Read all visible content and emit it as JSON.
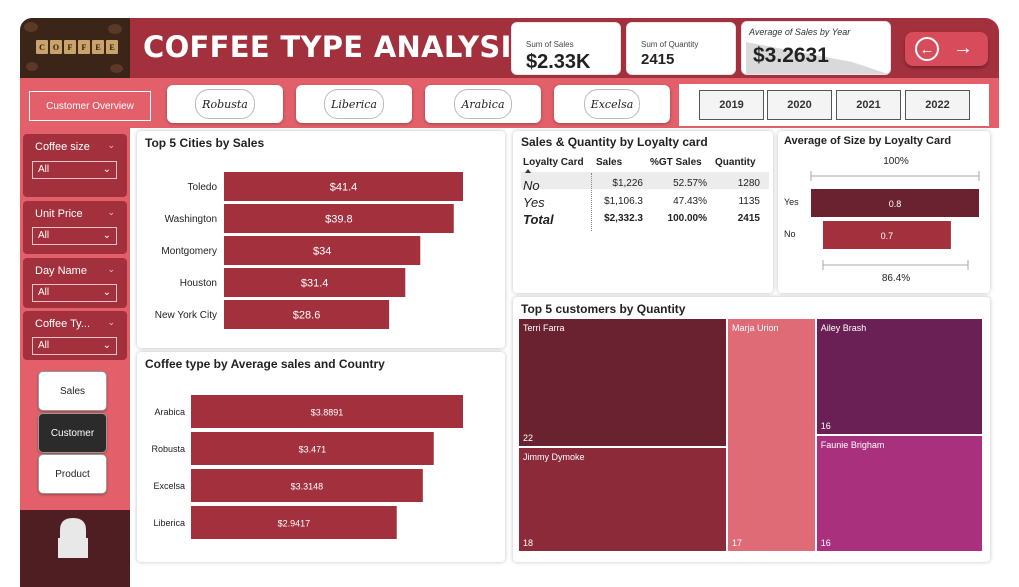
{
  "header": {
    "title": "COFFEE TYPE ANALYSIS",
    "logo_letters": [
      "C",
      "O",
      "F",
      "F",
      "E",
      "E"
    ],
    "kpis": {
      "sales": {
        "label": "Sum of Sales",
        "value": "$2.33K"
      },
      "quantity": {
        "label": "Sum of Quantity",
        "value": "2415"
      },
      "avg_by_year": {
        "label": "Average of Sales by Year",
        "value": "$3.2631"
      }
    },
    "nav": {
      "back": "←",
      "forward": "→"
    }
  },
  "band": {
    "overview_button": "Customer Overview",
    "coffee_tabs": [
      "Robusta",
      "Liberica",
      "Arabica",
      "Excelsa"
    ],
    "years": [
      "2019",
      "2020",
      "2021",
      "2022"
    ]
  },
  "sidebar": {
    "slicers": [
      {
        "title": "Coffee size",
        "value": "All"
      },
      {
        "title": "Unit Price",
        "value": "All"
      },
      {
        "title": "Day Name",
        "value": "All"
      },
      {
        "title": "Coffee Ty...",
        "value": "All"
      }
    ],
    "nav_buttons": [
      "Sales",
      "Customer",
      "Product"
    ],
    "chevron": "⌄",
    "dropdown_arrow": "⌄"
  },
  "cities_panel": {
    "title": "Top 5 Cities by Sales",
    "chart_data": {
      "type": "bar",
      "categories": [
        "Toledo",
        "Washington",
        "Montgomery",
        "Houston",
        "New York City"
      ],
      "values": [
        41.4,
        39.8,
        34,
        31.4,
        28.6
      ],
      "data_labels": [
        "$41.4",
        "$39.8",
        "$34",
        "$31.4",
        "$28.6"
      ],
      "bar_color": "#a3303d"
    }
  },
  "ctype_panel": {
    "title": "Coffee type by Average sales and Country",
    "chart_data": {
      "type": "bar",
      "categories": [
        "Arabica",
        "Robusta",
        "Excelsa",
        "Liberica"
      ],
      "values": [
        3.8891,
        3.471,
        3.3148,
        2.9417
      ],
      "data_labels": [
        "$3.8891",
        "$3.471",
        "$3.3148",
        "$2.9417"
      ],
      "bar_color": "#a3303d"
    }
  },
  "loyalty_panel": {
    "title": "Sales & Quantity by Loyalty card",
    "columns": [
      "Loyalty Card",
      "Sales",
      "%GT Sales",
      "Quantity"
    ],
    "rows": [
      {
        "card": "No",
        "sales": "$1,226",
        "pct": "52.57%",
        "qty": "1280"
      },
      {
        "card": "Yes",
        "sales": "$1,106.3",
        "pct": "47.43%",
        "qty": "1135"
      }
    ],
    "total": {
      "card": "Total",
      "sales": "$2,332.3",
      "pct": "100.00%",
      "qty": "2415"
    }
  },
  "size_panel": {
    "title": "Average of Size by Loyalty Card",
    "top_label": "100%",
    "bottom_label": "86.4%",
    "chart_data": {
      "type": "bar",
      "categories": [
        "Yes",
        "No"
      ],
      "values": [
        0.8,
        0.7
      ],
      "data_labels": [
        "0.8",
        "0.7"
      ],
      "colors": [
        "#6b2230",
        "#a3303d"
      ]
    }
  },
  "tree_panel": {
    "title": "Top 5 customers by Quantity",
    "chart_data": {
      "type": "treemap",
      "items": [
        {
          "name": "Terri Farra",
          "value": 22,
          "color": "#6b2230"
        },
        {
          "name": "Jimmy Dymoke",
          "value": 18,
          "color": "#8c2a3a"
        },
        {
          "name": "Marja Urion",
          "value": 17,
          "color": "#df6b76"
        },
        {
          "name": "Ailey Brash",
          "value": 16,
          "color": "#6b2055"
        },
        {
          "name": "Faunie Brigham",
          "value": 16,
          "color": "#a8307c"
        }
      ]
    }
  }
}
